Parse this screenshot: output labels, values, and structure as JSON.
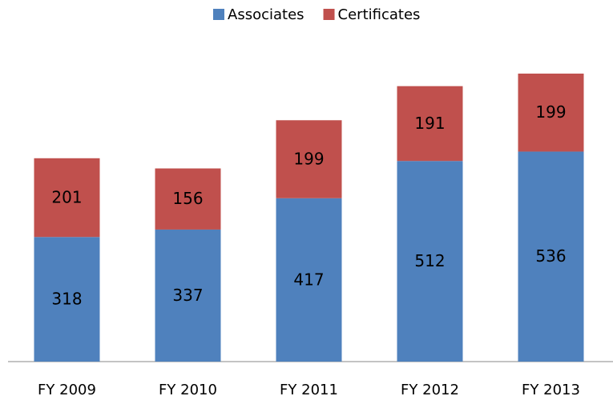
{
  "chart_data": {
    "type": "stacked-bar",
    "categories": [
      "FY 2009",
      "FY 2010",
      "FY 2011",
      "FY 2012",
      "FY 2013"
    ],
    "series": [
      {
        "name": "Associates",
        "color": "#4f81bd",
        "values": [
          318,
          337,
          417,
          512,
          536
        ]
      },
      {
        "name": "Certificates",
        "color": "#c0504d",
        "values": [
          201,
          156,
          199,
          191,
          199
        ]
      }
    ],
    "legend": "top"
  }
}
